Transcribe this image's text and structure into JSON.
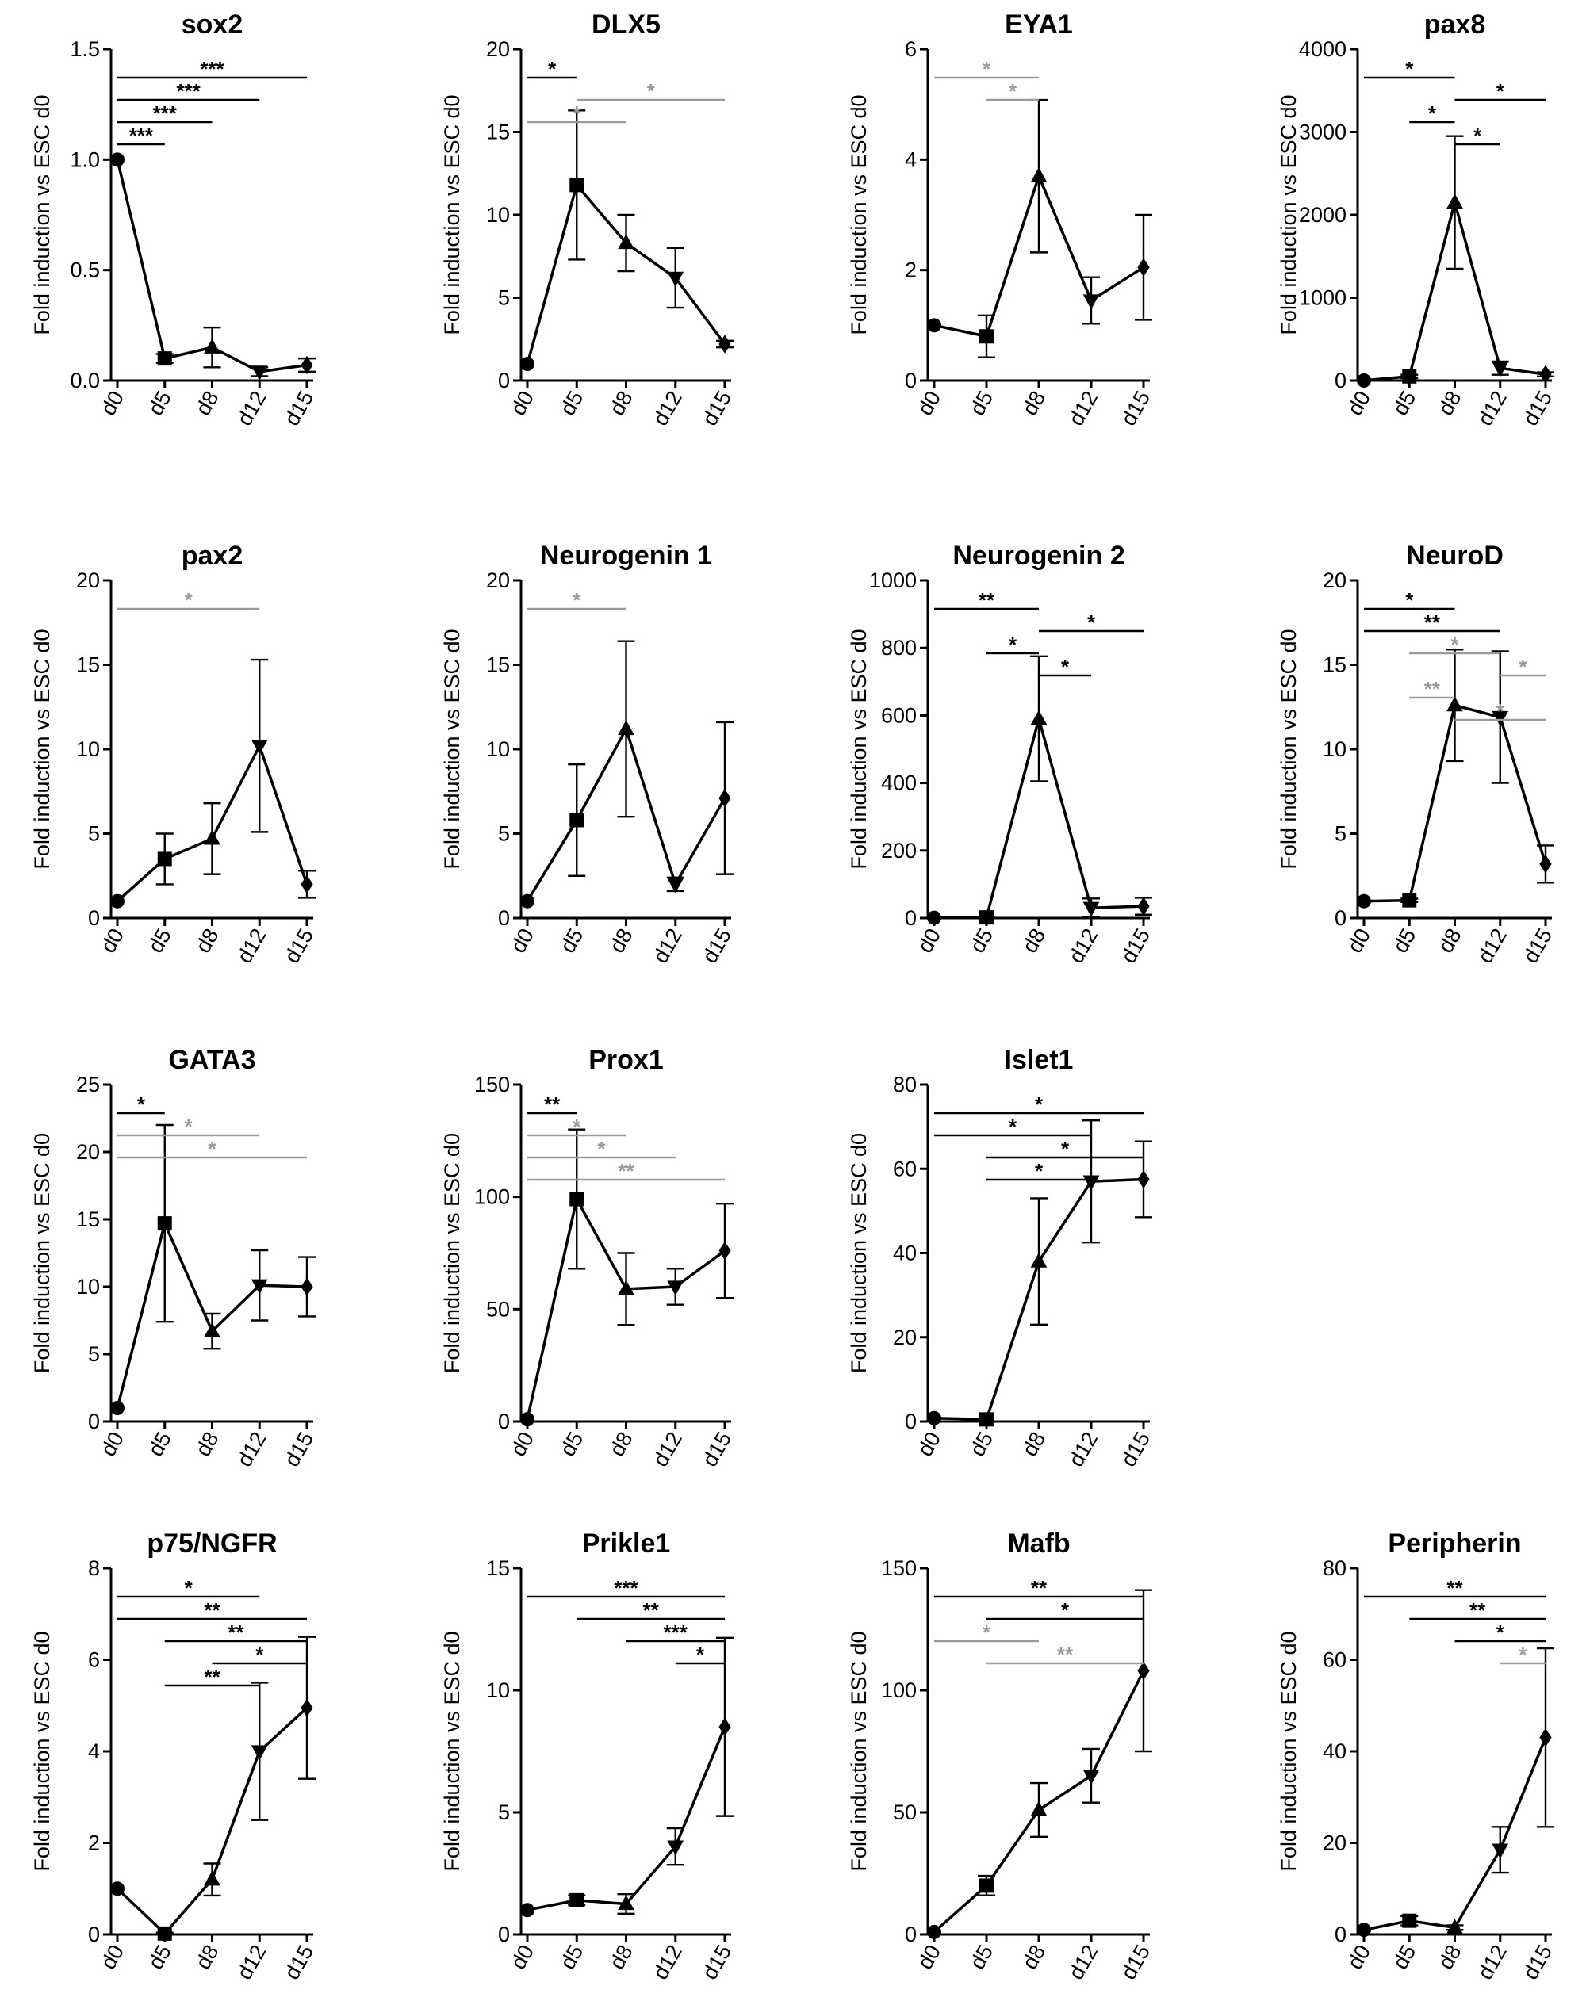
{
  "figure": {
    "y_axis_label": "Fold induction vs ESC d0",
    "x_categories": [
      "d0",
      "d5",
      "d8",
      "d12",
      "d15"
    ],
    "marker_shapes": [
      "circle",
      "square",
      "triangle-up",
      "triangle-down",
      "diamond"
    ],
    "colors": {
      "series": "#000000",
      "sig_black": "#000000",
      "sig_grey": "#9a9a9a"
    }
  },
  "chart_data": [
    {
      "type": "line",
      "title": "sox2",
      "ylabel": "Fold induction vs ESC d0",
      "categories": [
        "d0",
        "d5",
        "d8",
        "d12",
        "d15"
      ],
      "values": [
        1.0,
        0.1,
        0.15,
        0.04,
        0.07
      ],
      "errors": [
        0,
        0.02,
        0.09,
        0.02,
        0.03
      ],
      "ylim": [
        0,
        1.5
      ],
      "yticks": [
        0,
        0.5,
        1.0,
        1.5
      ],
      "ytick_labels": [
        "0.0",
        "0.5",
        "1.0",
        "1.5"
      ],
      "significance": [
        {
          "from": "d0",
          "to": "d15",
          "label": "***",
          "color": "black"
        },
        {
          "from": "d0",
          "to": "d12",
          "label": "***",
          "color": "black"
        },
        {
          "from": "d0",
          "to": "d8",
          "label": "***",
          "color": "black"
        },
        {
          "from": "d0",
          "to": "d5",
          "label": "***",
          "color": "black"
        }
      ]
    },
    {
      "type": "line",
      "title": "DLX5",
      "ylabel": "Fold induction vs ESC d0",
      "categories": [
        "d0",
        "d5",
        "d8",
        "d12",
        "d15"
      ],
      "values": [
        1,
        11.8,
        8.3,
        6.2,
        2.2
      ],
      "errors": [
        0,
        4.5,
        1.7,
        1.8,
        0.2
      ],
      "ylim": [
        0,
        20
      ],
      "yticks": [
        0,
        5,
        10,
        15,
        20
      ],
      "ytick_labels": [
        "0",
        "5",
        "10",
        "15",
        "20"
      ],
      "significance": [
        {
          "from": "d0",
          "to": "d5",
          "label": "*",
          "color": "black"
        },
        {
          "from": "d5",
          "to": "d15",
          "label": "*",
          "color": "grey"
        },
        {
          "from": "d0",
          "to": "d8",
          "label": "*",
          "color": "grey"
        }
      ]
    },
    {
      "type": "line",
      "title": "EYA1",
      "ylabel": "Fold induction vs ESC d0",
      "categories": [
        "d0",
        "d5",
        "d8",
        "d12",
        "d15"
      ],
      "values": [
        1,
        0.8,
        3.7,
        1.45,
        2.05
      ],
      "errors": [
        0,
        0.38,
        1.38,
        0.42,
        0.95
      ],
      "ylim": [
        0,
        6
      ],
      "yticks": [
        0,
        2,
        4,
        6
      ],
      "ytick_labels": [
        "0",
        "2",
        "4",
        "6"
      ],
      "significance": [
        {
          "from": "d0",
          "to": "d8",
          "label": "*",
          "color": "grey"
        },
        {
          "from": "d5",
          "to": "d8",
          "label": "*",
          "color": "grey"
        }
      ]
    },
    {
      "type": "line",
      "title": "pax8",
      "ylabel": "Fold induction vs ESC d0",
      "categories": [
        "d0",
        "d5",
        "d8",
        "d12",
        "d15"
      ],
      "values": [
        1,
        50,
        2150,
        150,
        75
      ],
      "errors": [
        0,
        20,
        800,
        80,
        25
      ],
      "ylim": [
        0,
        4000
      ],
      "yticks": [
        0,
        1000,
        2000,
        3000,
        4000
      ],
      "ytick_labels": [
        "0",
        "1000",
        "2000",
        "3000",
        "4000"
      ],
      "significance": [
        {
          "from": "d0",
          "to": "d8",
          "label": "*",
          "color": "black"
        },
        {
          "from": "d8",
          "to": "d15",
          "label": "*",
          "color": "black"
        },
        {
          "from": "d5",
          "to": "d8",
          "label": "*",
          "color": "black"
        },
        {
          "from": "d8",
          "to": "d12",
          "label": "*",
          "color": "black"
        }
      ]
    },
    {
      "type": "line",
      "title": "pax2",
      "ylabel": "Fold induction vs ESC d0",
      "categories": [
        "d0",
        "d5",
        "d8",
        "d12",
        "d15"
      ],
      "values": [
        1,
        3.5,
        4.7,
        10.2,
        2.0
      ],
      "errors": [
        0,
        1.5,
        2.1,
        5.1,
        0.8
      ],
      "ylim": [
        0,
        20
      ],
      "yticks": [
        0,
        5,
        10,
        15,
        20
      ],
      "ytick_labels": [
        "0",
        "5",
        "10",
        "15",
        "20"
      ],
      "significance": [
        {
          "from": "d0",
          "to": "d12",
          "label": "*",
          "color": "grey"
        }
      ]
    },
    {
      "type": "line",
      "title": "Neurogenin 1",
      "ylabel": "Fold induction vs ESC d0",
      "categories": [
        "d0",
        "d5",
        "d8",
        "d12",
        "d15"
      ],
      "values": [
        1,
        5.8,
        11.2,
        2.0,
        7.1
      ],
      "errors": [
        0,
        3.3,
        5.2,
        0.4,
        4.5
      ],
      "ylim": [
        0,
        20
      ],
      "yticks": [
        0,
        5,
        10,
        15,
        20
      ],
      "ytick_labels": [
        "0",
        "5",
        "10",
        "15",
        "20"
      ],
      "significance": [
        {
          "from": "d0",
          "to": "d8",
          "label": "*",
          "color": "grey"
        }
      ]
    },
    {
      "type": "line",
      "title": "Neurogenin 2",
      "ylabel": "Fold induction vs ESC d0",
      "categories": [
        "d0",
        "d5",
        "d8",
        "d12",
        "d15"
      ],
      "values": [
        1,
        2,
        590,
        30,
        35
      ],
      "errors": [
        0,
        1,
        185,
        28,
        25
      ],
      "ylim": [
        0,
        1000
      ],
      "yticks": [
        0,
        200,
        400,
        600,
        800,
        1000
      ],
      "ytick_labels": [
        "0",
        "200",
        "400",
        "600",
        "800",
        "1000"
      ],
      "significance": [
        {
          "from": "d0",
          "to": "d8",
          "label": "**",
          "color": "black"
        },
        {
          "from": "d8",
          "to": "d15",
          "label": "*",
          "color": "black"
        },
        {
          "from": "d5",
          "to": "d8",
          "label": "*",
          "color": "black"
        },
        {
          "from": "d8",
          "to": "d12",
          "label": "*",
          "color": "black"
        }
      ]
    },
    {
      "type": "line",
      "title": "NeuroD",
      "ylabel": "Fold induction vs ESC d0",
      "categories": [
        "d0",
        "d5",
        "d8",
        "d12",
        "d15"
      ],
      "values": [
        1,
        1.05,
        12.6,
        11.9,
        3.2
      ],
      "errors": [
        0,
        0.1,
        3.3,
        3.9,
        1.1
      ],
      "ylim": [
        0,
        20
      ],
      "yticks": [
        0,
        5,
        10,
        15,
        20
      ],
      "ytick_labels": [
        "0",
        "5",
        "10",
        "15",
        "20"
      ],
      "significance": [
        {
          "from": "d0",
          "to": "d8",
          "label": "*",
          "color": "black"
        },
        {
          "from": "d0",
          "to": "d12",
          "label": "**",
          "color": "black"
        },
        {
          "from": "d5",
          "to": "d12",
          "label": "*",
          "color": "grey"
        },
        {
          "from": "d12",
          "to": "d15",
          "label": "*",
          "color": "grey"
        },
        {
          "from": "d5",
          "to": "d8",
          "label": "**",
          "color": "grey"
        },
        {
          "from": "d8",
          "to": "d15",
          "label": "*",
          "color": "grey"
        }
      ]
    },
    {
      "type": "line",
      "title": "GATA3",
      "ylabel": "Fold induction vs ESC d0",
      "categories": [
        "d0",
        "d5",
        "d8",
        "d12",
        "d15"
      ],
      "values": [
        1,
        14.7,
        6.7,
        10.1,
        10.0
      ],
      "errors": [
        0,
        7.3,
        1.3,
        2.6,
        2.2
      ],
      "ylim": [
        0,
        25
      ],
      "yticks": [
        0,
        5,
        10,
        15,
        20,
        25
      ],
      "ytick_labels": [
        "0",
        "5",
        "10",
        "15",
        "20",
        "25"
      ],
      "significance": [
        {
          "from": "d0",
          "to": "d5",
          "label": "*",
          "color": "black"
        },
        {
          "from": "d0",
          "to": "d12",
          "label": "*",
          "color": "grey"
        },
        {
          "from": "d0",
          "to": "d15",
          "label": "*",
          "color": "grey"
        }
      ]
    },
    {
      "type": "line",
      "title": "Prox1",
      "ylabel": "Fold induction vs ESC d0",
      "categories": [
        "d0",
        "d5",
        "d8",
        "d12",
        "d15"
      ],
      "values": [
        1,
        99,
        59,
        60,
        76
      ],
      "errors": [
        0,
        31,
        16,
        8,
        21
      ],
      "ylim": [
        0,
        150
      ],
      "yticks": [
        0,
        50,
        100,
        150
      ],
      "ytick_labels": [
        "0",
        "50",
        "100",
        "150"
      ],
      "significance": [
        {
          "from": "d0",
          "to": "d5",
          "label": "**",
          "color": "black"
        },
        {
          "from": "d0",
          "to": "d8",
          "label": "*",
          "color": "grey"
        },
        {
          "from": "d0",
          "to": "d12",
          "label": "*",
          "color": "grey"
        },
        {
          "from": "d0",
          "to": "d15",
          "label": "**",
          "color": "grey"
        }
      ]
    },
    {
      "type": "line",
      "title": "Islet1",
      "ylabel": "Fold induction vs ESC d0",
      "categories": [
        "d0",
        "d5",
        "d8",
        "d12",
        "d15"
      ],
      "values": [
        0.8,
        0.5,
        38,
        57,
        57.5
      ],
      "errors": [
        0,
        0,
        15,
        14.5,
        9
      ],
      "ylim": [
        0,
        80
      ],
      "yticks": [
        0,
        20,
        40,
        60,
        80
      ],
      "ytick_labels": [
        "0",
        "20",
        "40",
        "60",
        "80"
      ],
      "significance": [
        {
          "from": "d0",
          "to": "d15",
          "label": "*",
          "color": "black"
        },
        {
          "from": "d0",
          "to": "d12",
          "label": "*",
          "color": "black"
        },
        {
          "from": "d5",
          "to": "d15",
          "label": "*",
          "color": "black"
        },
        {
          "from": "d5",
          "to": "d12",
          "label": "*",
          "color": "black"
        }
      ]
    },
    {
      "type": "line",
      "title": "p75/NGFR",
      "ylabel": "Fold induction vs ESC d0",
      "categories": [
        "d0",
        "d5",
        "d8",
        "d12",
        "d15"
      ],
      "values": [
        1.0,
        0.02,
        1.2,
        4.0,
        4.95
      ],
      "errors": [
        0,
        0.02,
        0.35,
        1.5,
        1.55
      ],
      "ylim": [
        0,
        8
      ],
      "yticks": [
        0,
        2,
        4,
        6,
        8
      ],
      "ytick_labels": [
        "0",
        "2",
        "4",
        "6",
        "8"
      ],
      "significance": [
        {
          "from": "d0",
          "to": "d12",
          "label": "*",
          "color": "black"
        },
        {
          "from": "d0",
          "to": "d15",
          "label": "**",
          "color": "black"
        },
        {
          "from": "d5",
          "to": "d15",
          "label": "**",
          "color": "black"
        },
        {
          "from": "d8",
          "to": "d15",
          "label": "*",
          "color": "black"
        },
        {
          "from": "d5",
          "to": "d12",
          "label": "**",
          "color": "black"
        }
      ]
    },
    {
      "type": "line",
      "title": "Prikle1",
      "ylabel": "Fold induction vs ESC d0",
      "categories": [
        "d0",
        "d5",
        "d8",
        "d12",
        "d15"
      ],
      "values": [
        1,
        1.4,
        1.25,
        3.6,
        8.5
      ],
      "errors": [
        0,
        0.2,
        0.4,
        0.75,
        3.65
      ],
      "ylim": [
        0,
        15
      ],
      "yticks": [
        0,
        5,
        10,
        15
      ],
      "ytick_labels": [
        "0",
        "5",
        "10",
        "15"
      ],
      "significance": [
        {
          "from": "d0",
          "to": "d15",
          "label": "***",
          "color": "black"
        },
        {
          "from": "d5",
          "to": "d15",
          "label": "**",
          "color": "black"
        },
        {
          "from": "d8",
          "to": "d15",
          "label": "***",
          "color": "black"
        },
        {
          "from": "d12",
          "to": "d15",
          "label": "*",
          "color": "black"
        }
      ]
    },
    {
      "type": "line",
      "title": "Mafb",
      "ylabel": "Fold induction vs ESC d0",
      "categories": [
        "d0",
        "d5",
        "d8",
        "d12",
        "d15"
      ],
      "values": [
        1,
        20,
        51,
        65,
        108
      ],
      "errors": [
        0,
        4,
        11,
        11,
        33
      ],
      "ylim": [
        0,
        150
      ],
      "yticks": [
        0,
        50,
        100,
        150
      ],
      "ytick_labels": [
        "0",
        "50",
        "100",
        "150"
      ],
      "significance": [
        {
          "from": "d0",
          "to": "d15",
          "label": "**",
          "color": "black"
        },
        {
          "from": "d5",
          "to": "d15",
          "label": "*",
          "color": "black"
        },
        {
          "from": "d0",
          "to": "d8",
          "label": "*",
          "color": "grey"
        },
        {
          "from": "d5",
          "to": "d15",
          "label": "**",
          "color": "grey"
        }
      ]
    },
    {
      "type": "line",
      "title": "Peripherin",
      "ylabel": "Fold induction vs ESC d0",
      "categories": [
        "d0",
        "d5",
        "d8",
        "d12",
        "d15"
      ],
      "values": [
        1,
        3,
        1.5,
        18.5,
        43
      ],
      "errors": [
        0,
        1,
        0.5,
        5,
        19.5
      ],
      "ylim": [
        0,
        80
      ],
      "yticks": [
        0,
        20,
        40,
        60,
        80
      ],
      "ytick_labels": [
        "0",
        "20",
        "40",
        "60",
        "80"
      ],
      "significance": [
        {
          "from": "d0",
          "to": "d15",
          "label": "**",
          "color": "black"
        },
        {
          "from": "d5",
          "to": "d15",
          "label": "**",
          "color": "black"
        },
        {
          "from": "d8",
          "to": "d15",
          "label": "*",
          "color": "black"
        },
        {
          "from": "d12",
          "to": "d15",
          "label": "*",
          "color": "grey"
        }
      ]
    }
  ]
}
